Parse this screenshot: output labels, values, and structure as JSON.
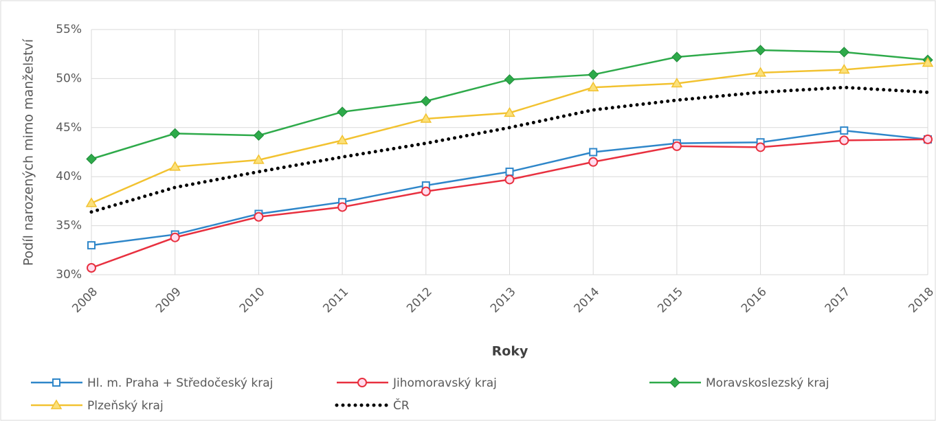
{
  "chart_data": {
    "type": "line",
    "ylabel": "Podíl narozených mimo manželství",
    "xlabel": "Roky",
    "categories": [
      "2008",
      "2009",
      "2010",
      "2011",
      "2012",
      "2013",
      "2014",
      "2015",
      "2016",
      "2017",
      "2018"
    ],
    "ylim": [
      30,
      55
    ],
    "yticks": [
      {
        "value": 30,
        "label": "30%"
      },
      {
        "value": 35,
        "label": "35%"
      },
      {
        "value": 40,
        "label": "40%"
      },
      {
        "value": 45,
        "label": "45%"
      },
      {
        "value": 50,
        "label": "50%"
      },
      {
        "value": 55,
        "label": "55%"
      }
    ],
    "grid": true,
    "legend": "bottom",
    "series": [
      {
        "name": "Hl. m. Praha + Středočeský kraj",
        "color": "#2e86c9",
        "marker": "square",
        "values": [
          33.0,
          34.1,
          36.2,
          37.4,
          39.1,
          40.5,
          42.5,
          43.4,
          43.5,
          44.7,
          43.8
        ]
      },
      {
        "name": "Jihomoravský kraj",
        "color": "#e8303f",
        "marker": "circle",
        "values": [
          30.7,
          33.8,
          35.9,
          36.9,
          38.5,
          39.7,
          41.5,
          43.1,
          43.0,
          43.7,
          43.8
        ]
      },
      {
        "name": "Moravskoslezský kraj",
        "color": "#2eaa4a",
        "marker": "diamond",
        "values": [
          41.8,
          44.4,
          44.2,
          46.6,
          47.7,
          49.9,
          50.4,
          52.2,
          52.9,
          52.7,
          51.9
        ]
      },
      {
        "name": "Plzeňský kraj",
        "color": "#f2c230",
        "marker": "triangle",
        "values": [
          37.3,
          41.0,
          41.7,
          43.7,
          45.9,
          46.5,
          49.1,
          49.5,
          50.6,
          50.9,
          51.6
        ]
      },
      {
        "name": "ČR",
        "color": "#000000",
        "dash": "dotted",
        "values": [
          36.4,
          38.9,
          40.5,
          42.0,
          43.4,
          45.0,
          46.8,
          47.8,
          48.6,
          49.1,
          48.6
        ]
      }
    ]
  }
}
